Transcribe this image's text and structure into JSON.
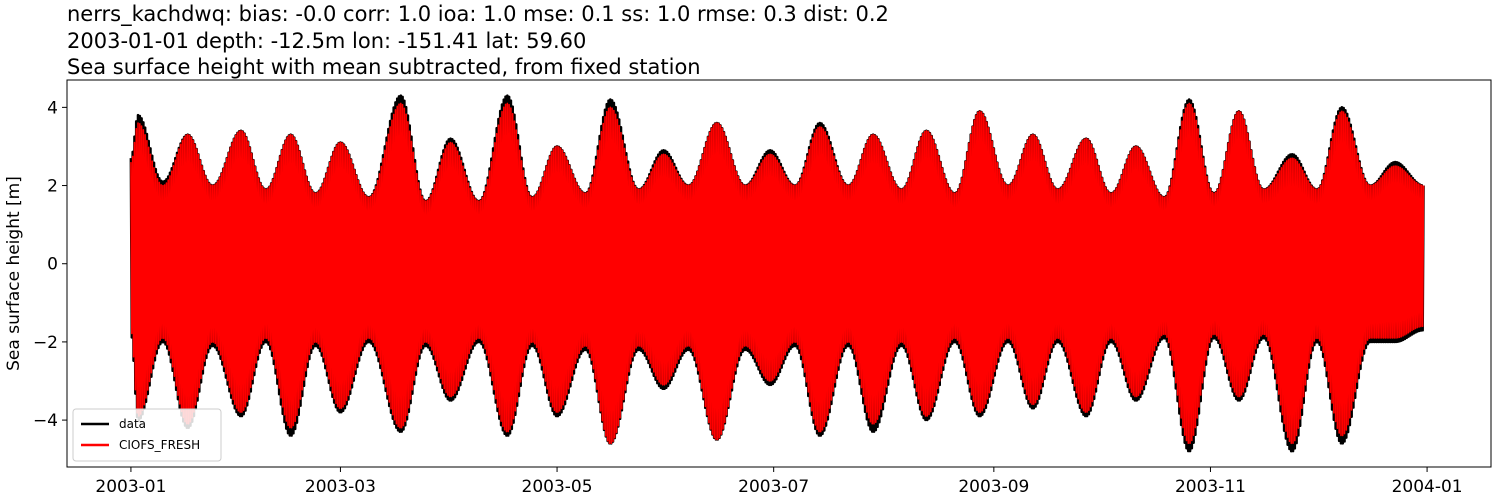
{
  "title_lines": [
    "nerrs_kachdwq: bias: -0.0  corr: 1.0  ioa: 1.0  mse: 0.1  ss: 1.0  rmse: 0.3  dist: 0.2",
    "2003-01-01 depth: -12.5m lon: -151.41 lat: 59.60",
    "Sea surface height with mean subtracted, from fixed station"
  ],
  "chart_data": {
    "type": "line",
    "title": "nerrs_kachdwq: bias: -0.0  corr: 1.0  ioa: 1.0  mse: 0.1  ss: 1.0  rmse: 0.3  dist: 0.2 / 2003-01-01 depth: -12.5m lon: -151.41 lat: 59.60 / Sea surface height with mean subtracted, from fixed station",
    "xlabel": "",
    "ylabel": "Sea surface height [m]",
    "x_range": [
      "2002-12-14",
      "2004-01-19"
    ],
    "ylim": [
      -5.2,
      4.7
    ],
    "x_ticks": [
      "2003-01",
      "2003-03",
      "2003-05",
      "2003-07",
      "2003-09",
      "2003-11",
      "2004-01"
    ],
    "y_ticks": [
      4,
      2,
      0,
      -2,
      -4
    ],
    "y_tick_labels": [
      "4",
      "2",
      "0",
      "−2",
      "−4"
    ],
    "grid": false,
    "legend_position": "lower-left",
    "series": [
      {
        "name": "data",
        "color": "#000000",
        "envelope_dates": [
          "2003-01-01",
          "2003-01-03",
          "2003-01-10",
          "2003-01-17",
          "2003-01-24",
          "2003-02-01",
          "2003-02-08",
          "2003-02-15",
          "2003-02-22",
          "2003-03-01",
          "2003-03-09",
          "2003-03-18",
          "2003-03-25",
          "2003-04-01",
          "2003-04-09",
          "2003-04-17",
          "2003-04-24",
          "2003-05-01",
          "2003-05-09",
          "2003-05-16",
          "2003-05-24",
          "2003-05-31",
          "2003-06-07",
          "2003-06-15",
          "2003-06-23",
          "2003-06-30",
          "2003-07-07",
          "2003-07-14",
          "2003-07-22",
          "2003-07-29",
          "2003-08-06",
          "2003-08-13",
          "2003-08-21",
          "2003-08-28",
          "2003-09-05",
          "2003-09-12",
          "2003-09-19",
          "2003-09-27",
          "2003-10-04",
          "2003-10-11",
          "2003-10-19",
          "2003-10-26",
          "2003-11-02",
          "2003-11-09",
          "2003-11-16",
          "2003-11-24",
          "2003-12-01",
          "2003-12-08",
          "2003-12-16",
          "2003-12-23",
          "2003-12-31"
        ],
        "envelope_max": [
          2.7,
          3.8,
          2.1,
          3.3,
          2.0,
          3.4,
          1.9,
          3.3,
          1.8,
          3.1,
          1.7,
          4.3,
          1.6,
          3.2,
          1.6,
          4.3,
          1.7,
          3.0,
          1.8,
          4.2,
          1.9,
          2.9,
          2.0,
          3.6,
          2.0,
          2.9,
          2.0,
          3.6,
          2.0,
          3.3,
          1.9,
          3.4,
          1.8,
          3.9,
          2.0,
          3.3,
          1.9,
          3.2,
          1.8,
          3.0,
          1.7,
          4.2,
          1.8,
          3.9,
          1.9,
          2.8,
          1.9,
          4.0,
          2.0,
          2.6,
          2.0
        ],
        "envelope_min": [
          -1.8,
          -4.0,
          -2.0,
          -4.2,
          -2.1,
          -3.9,
          -2.0,
          -4.4,
          -2.1,
          -3.8,
          -2.0,
          -4.3,
          -2.1,
          -3.5,
          -2.0,
          -4.4,
          -2.1,
          -3.9,
          -2.2,
          -4.6,
          -2.2,
          -3.2,
          -2.2,
          -4.5,
          -2.2,
          -3.1,
          -2.1,
          -4.4,
          -2.1,
          -4.3,
          -2.1,
          -4.0,
          -2.0,
          -3.9,
          -2.0,
          -3.7,
          -2.0,
          -3.9,
          -2.0,
          -3.5,
          -1.9,
          -4.8,
          -1.9,
          -3.5,
          -1.9,
          -4.8,
          -2.0,
          -4.6,
          -2.0,
          -2.0,
          -1.7
        ]
      },
      {
        "name": "CIOFS_FRESH",
        "color": "#ff0000",
        "envelope_dates": [
          "2003-01-01",
          "2003-01-03",
          "2003-01-10",
          "2003-01-17",
          "2003-01-24",
          "2003-02-01",
          "2003-02-08",
          "2003-02-15",
          "2003-02-22",
          "2003-03-01",
          "2003-03-09",
          "2003-03-18",
          "2003-03-25",
          "2003-04-01",
          "2003-04-09",
          "2003-04-17",
          "2003-04-24",
          "2003-05-01",
          "2003-05-09",
          "2003-05-16",
          "2003-05-24",
          "2003-05-31",
          "2003-06-07",
          "2003-06-15",
          "2003-06-23",
          "2003-06-30",
          "2003-07-07",
          "2003-07-14",
          "2003-07-22",
          "2003-07-29",
          "2003-08-06",
          "2003-08-13",
          "2003-08-21",
          "2003-08-28",
          "2003-09-05",
          "2003-09-12",
          "2003-09-19",
          "2003-09-27",
          "2003-10-04",
          "2003-10-11",
          "2003-10-19",
          "2003-10-26",
          "2003-11-02",
          "2003-11-09",
          "2003-11-16",
          "2003-11-24",
          "2003-12-01",
          "2003-12-08",
          "2003-12-16",
          "2003-12-23",
          "2003-12-31"
        ],
        "envelope_max": [
          2.6,
          3.6,
          2.0,
          3.3,
          2.0,
          3.4,
          1.9,
          3.3,
          1.8,
          3.1,
          1.7,
          4.1,
          1.6,
          3.1,
          1.6,
          4.1,
          1.7,
          3.0,
          1.8,
          4.0,
          1.9,
          2.8,
          2.0,
          3.6,
          2.0,
          2.8,
          2.0,
          3.5,
          2.0,
          3.3,
          1.9,
          3.4,
          1.8,
          3.9,
          2.0,
          3.3,
          1.9,
          3.2,
          1.8,
          3.0,
          1.7,
          4.1,
          1.8,
          3.9,
          1.9,
          2.7,
          1.9,
          3.9,
          2.0,
          2.5,
          2.0
        ],
        "envelope_min": [
          -1.7,
          -3.9,
          -1.9,
          -4.1,
          -2.0,
          -3.8,
          -1.9,
          -4.2,
          -2.0,
          -3.7,
          -1.9,
          -4.2,
          -2.0,
          -3.4,
          -1.9,
          -4.3,
          -2.0,
          -3.8,
          -2.1,
          -4.6,
          -2.1,
          -3.1,
          -2.1,
          -4.5,
          -2.1,
          -3.0,
          -2.0,
          -4.3,
          -2.0,
          -4.1,
          -2.0,
          -3.9,
          -1.9,
          -3.8,
          -1.9,
          -3.6,
          -1.9,
          -3.8,
          -1.9,
          -3.4,
          -1.8,
          -4.6,
          -1.8,
          -3.4,
          -1.8,
          -4.6,
          -1.9,
          -4.4,
          -1.9,
          -1.9,
          -1.6
        ]
      }
    ]
  }
}
